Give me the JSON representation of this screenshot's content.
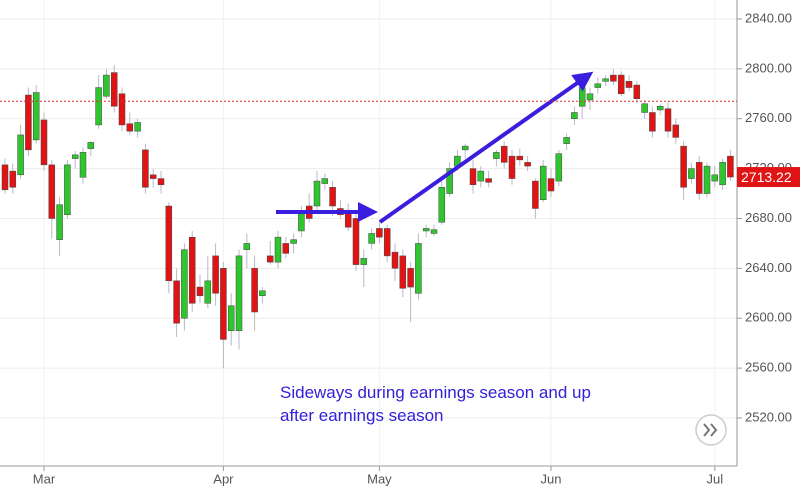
{
  "chart_data": {
    "type": "candlestick",
    "categories": [
      null,
      null,
      null,
      null,
      null,
      "Mar",
      null,
      null,
      null,
      null,
      null,
      null,
      null,
      null,
      null,
      null,
      null,
      null,
      null,
      null,
      null,
      null,
      null,
      null,
      null,
      null,
      null,
      null,
      "Apr",
      null,
      null,
      null,
      null,
      null,
      null,
      null,
      null,
      null,
      null,
      null,
      null,
      null,
      null,
      null,
      null,
      null,
      null,
      null,
      "May",
      null,
      null,
      null,
      null,
      null,
      null,
      null,
      null,
      null,
      null,
      null,
      null,
      null,
      null,
      null,
      null,
      null,
      null,
      null,
      null,
      null,
      "Jun",
      null,
      null,
      null,
      null,
      null,
      null,
      null,
      null,
      null,
      null,
      null,
      null,
      null,
      null,
      null,
      null,
      null,
      null,
      null,
      null,
      "Jul",
      null,
      null
    ],
    "open": [
      2723,
      2718,
      2715,
      2779,
      2743,
      2759,
      2723,
      2663,
      2683,
      2728,
      2713,
      2736,
      2755,
      2778,
      2797,
      2780,
      2756,
      2750,
      2735,
      2715,
      2712,
      2690,
      2630,
      2600,
      2665,
      2625,
      2612,
      2650,
      2640,
      2590,
      2590,
      2655,
      2640,
      2618,
      2650,
      2645,
      2660,
      2660,
      2670,
      2690,
      2690,
      2708,
      2705,
      2688,
      2685,
      2680,
      2643,
      2660,
      2672,
      2672,
      2653,
      2650,
      2640,
      2620,
      2670,
      2668,
      2677,
      2700,
      2722,
      2735,
      2720,
      2710,
      2712,
      2728,
      2738,
      2730,
      2730,
      2725,
      2710,
      2695,
      2712,
      2710,
      2740,
      2760,
      2770,
      2775,
      2785,
      2790,
      2795,
      2795,
      2790,
      2787,
      2765,
      2765,
      2767,
      2768,
      2755,
      2738,
      2712,
      2725,
      2700,
      2710,
      2707,
      2730
    ],
    "high": [
      2728,
      2724,
      2755,
      2785,
      2787,
      2765,
      2727,
      2697,
      2727,
      2734,
      2737,
      2742,
      2795,
      2800,
      2803,
      2785,
      2765,
      2760,
      2740,
      2720,
      2718,
      2693,
      2640,
      2660,
      2670,
      2635,
      2650,
      2660,
      2645,
      2620,
      2655,
      2668,
      2650,
      2625,
      2662,
      2670,
      2665,
      2668,
      2690,
      2700,
      2718,
      2716,
      2710,
      2695,
      2692,
      2685,
      2655,
      2672,
      2678,
      2675,
      2660,
      2655,
      2645,
      2668,
      2675,
      2675,
      2710,
      2725,
      2735,
      2740,
      2727,
      2722,
      2718,
      2735,
      2742,
      2735,
      2736,
      2730,
      2712,
      2727,
      2720,
      2735,
      2748,
      2770,
      2790,
      2785,
      2793,
      2795,
      2800,
      2798,
      2795,
      2790,
      2775,
      2770,
      2772,
      2774,
      2760,
      2742,
      2725,
      2730,
      2725,
      2722,
      2728,
      2735
    ],
    "low": [
      2700,
      2700,
      2712,
      2730,
      2740,
      2718,
      2664,
      2650,
      2680,
      2720,
      2708,
      2730,
      2752,
      2776,
      2765,
      2750,
      2747,
      2745,
      2700,
      2705,
      2700,
      2620,
      2585,
      2590,
      2605,
      2612,
      2608,
      2610,
      2560,
      2578,
      2575,
      2640,
      2590,
      2612,
      2643,
      2640,
      2648,
      2652,
      2665,
      2677,
      2686,
      2703,
      2682,
      2680,
      2670,
      2638,
      2625,
      2655,
      2660,
      2645,
      2630,
      2617,
      2597,
      2615,
      2665,
      2666,
      2675,
      2697,
      2718,
      2728,
      2700,
      2705,
      2705,
      2722,
      2720,
      2707,
      2722,
      2718,
      2680,
      2693,
      2697,
      2706,
      2735,
      2755,
      2760,
      2767,
      2780,
      2786,
      2787,
      2778,
      2782,
      2773,
      2760,
      2745,
      2763,
      2745,
      2740,
      2695,
      2708,
      2695,
      2697,
      2705,
      2703,
      2710
    ],
    "close": [
      2703,
      2705,
      2747,
      2735,
      2781,
      2723,
      2680,
      2691,
      2723,
      2731,
      2733,
      2741,
      2785,
      2795,
      2770,
      2755,
      2750,
      2757,
      2705,
      2712,
      2707,
      2630,
      2596,
      2655,
      2612,
      2618,
      2630,
      2620,
      2583,
      2610,
      2650,
      2660,
      2605,
      2622,
      2645,
      2665,
      2652,
      2663,
      2686,
      2680,
      2710,
      2712,
      2690,
      2683,
      2673,
      2643,
      2648,
      2668,
      2665,
      2650,
      2640,
      2624,
      2625,
      2660,
      2672,
      2671,
      2705,
      2720,
      2730,
      2738,
      2707,
      2718,
      2709,
      2733,
      2725,
      2712,
      2727,
      2722,
      2688,
      2722,
      2702,
      2732,
      2745,
      2765,
      2785,
      2780,
      2788,
      2792,
      2790,
      2780,
      2785,
      2776,
      2772,
      2750,
      2770,
      2750,
      2745,
      2705,
      2720,
      2700,
      2722,
      2715,
      2725,
      2713.22
    ],
    "up_color": "#2ec52e",
    "down_color": "#e01414",
    "ylim": [
      2481.5,
      2855.2
    ],
    "yticks": [
      {
        "value": 2520,
        "label": "2520.00"
      },
      {
        "value": 2560,
        "label": "2560.00"
      },
      {
        "value": 2600,
        "label": "2600.00"
      },
      {
        "value": 2640,
        "label": "2640.00"
      },
      {
        "value": 2680,
        "label": "2680.00"
      },
      {
        "value": 2720,
        "label": "2720.00"
      },
      {
        "value": 2760,
        "label": "2760.00"
      },
      {
        "value": 2800,
        "label": "2800.00"
      },
      {
        "value": 2840,
        "label": "2840.00"
      }
    ],
    "grid": true,
    "reference_line": 2774,
    "last_price_label": "2713.22",
    "annotation": [
      "Sideways during earnings season and up",
      "after earnings season"
    ]
  }
}
